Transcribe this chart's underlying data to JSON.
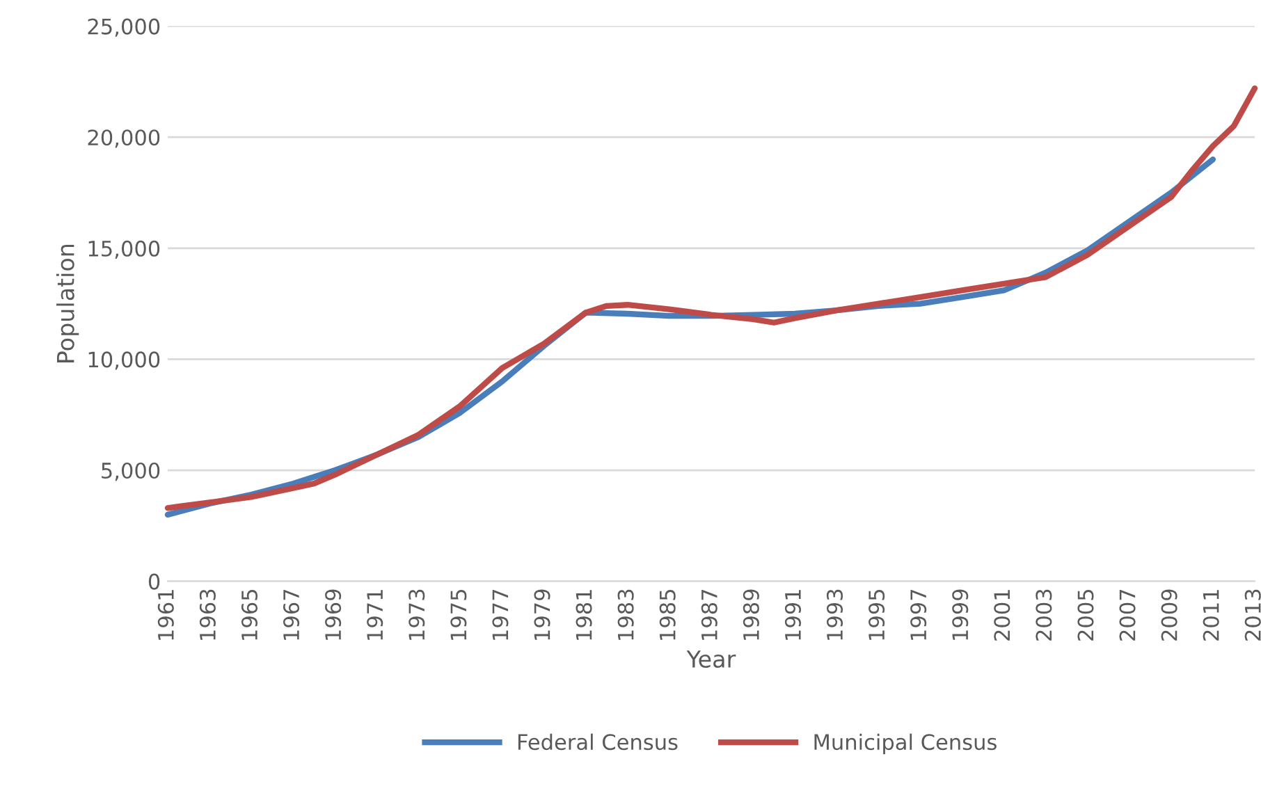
{
  "chart_data": {
    "type": "line",
    "xlabel": "Year",
    "ylabel": "Population",
    "xlim": [
      1961,
      2013
    ],
    "xticks": [
      1961,
      1963,
      1965,
      1967,
      1969,
      1971,
      1973,
      1975,
      1977,
      1979,
      1981,
      1983,
      1985,
      1987,
      1989,
      1991,
      1993,
      1995,
      1997,
      1999,
      2001,
      2003,
      2005,
      2007,
      2009,
      2011,
      2013
    ],
    "ylim": [
      0,
      25000
    ],
    "yticks": [
      {
        "value": 0,
        "label": "0"
      },
      {
        "value": 5000,
        "label": "5,000"
      },
      {
        "value": 10000,
        "label": "10,000"
      },
      {
        "value": 15000,
        "label": "15,000"
      },
      {
        "value": 20000,
        "label": "20,000"
      },
      {
        "value": 25000,
        "label": "25,000"
      }
    ],
    "grid": "y",
    "legend": "bottom",
    "marker": "none",
    "line_style": "solid",
    "series": [
      {
        "name": "Federal Census",
        "color": "#4a7ebb",
        "x": [
          1961,
          1963,
          1965,
          1967,
          1969,
          1971,
          1973,
          1975,
          1977,
          1979,
          1981,
          1983,
          1985,
          1987,
          1989,
          1991,
          1993,
          1995,
          1997,
          1999,
          2001,
          2003,
          2005,
          2007,
          2009,
          2011
        ],
        "values": [
          3000,
          3500,
          3900,
          4400,
          5000,
          5700,
          6500,
          7600,
          9000,
          10600,
          12100,
          12050,
          11950,
          11950,
          12000,
          12050,
          12200,
          12400,
          12500,
          12800,
          13100,
          13900,
          14900,
          16200,
          17500,
          19000
        ]
      },
      {
        "name": "Municipal Census",
        "color": "#be4b48",
        "x": [
          1961,
          1963,
          1965,
          1967,
          1968,
          1969,
          1971,
          1973,
          1975,
          1977,
          1979,
          1981,
          1982,
          1983,
          1985,
          1987,
          1989,
          1990,
          1991,
          1993,
          1995,
          1997,
          1999,
          2001,
          2003,
          2005,
          2007,
          2009,
          2010,
          2011,
          2012,
          2013
        ],
        "values": [
          3300,
          3550,
          3800,
          4200,
          4400,
          4800,
          5700,
          6600,
          7900,
          9600,
          10700,
          12100,
          12400,
          12450,
          12250,
          12000,
          11800,
          11650,
          11850,
          12200,
          12500,
          12800,
          13100,
          13400,
          13700,
          14700,
          16000,
          17300,
          18500,
          19600,
          20500,
          22200
        ]
      }
    ]
  }
}
